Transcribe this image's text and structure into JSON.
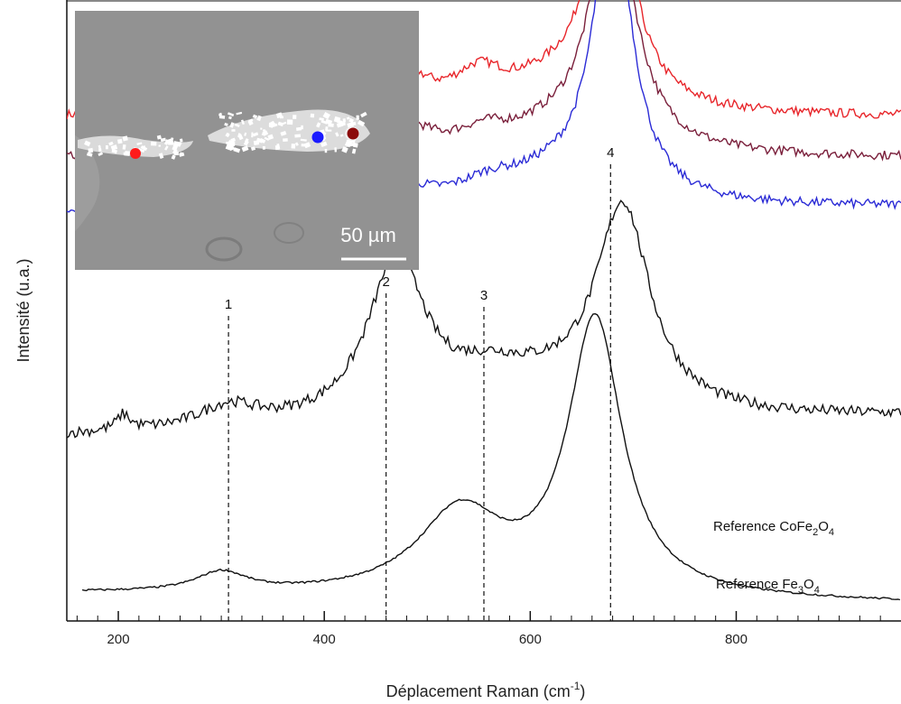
{
  "chart_data": {
    "type": "line",
    "xlabel": "Déplacement Raman (cm-1)",
    "xlabel_parts": {
      "main": "Déplacement Raman (cm",
      "sup": "-1",
      "end": ")"
    },
    "ylabel": "Intensité (u.a.)",
    "xlim": [
      150,
      960
    ],
    "ylim": [
      0,
      100
    ],
    "x_ticks": [
      200,
      400,
      600,
      800
    ],
    "grid": false,
    "peak_markers": [
      {
        "label": "1",
        "x": 307
      },
      {
        "label": "2",
        "x": 460
      },
      {
        "label": "3",
        "x": 555
      },
      {
        "label": "4",
        "x": 678
      }
    ],
    "series": [
      {
        "color": "#e8262b",
        "base": 82.3,
        "slope": 0.0,
        "bands": [
          [
            307,
            4.0,
            38
          ],
          [
            465,
            9.0,
            30
          ],
          [
            550,
            5.0,
            30
          ],
          [
            678,
            40.0,
            24
          ],
          [
            620,
            4.0,
            60
          ]
        ]
      },
      {
        "color": "#7a1f3b",
        "base": 75.6,
        "slope": 0.0,
        "bands": [
          [
            307,
            5.5,
            40
          ],
          [
            465,
            6.5,
            32
          ],
          [
            555,
            2.5,
            30
          ],
          [
            680,
            40.0,
            26
          ],
          [
            620,
            3.0,
            60
          ]
        ]
      },
      {
        "color": "#2b2bd6",
        "base": 66.8,
        "slope": 0.001,
        "bands": [
          [
            312,
            5.0,
            42
          ],
          [
            462,
            4.5,
            32
          ],
          [
            560,
            2.5,
            35
          ],
          [
            680,
            49.0,
            22
          ],
          [
            620,
            4.0,
            60
          ]
        ]
      },
      {
        "name": "Reference CoFe2O4",
        "label_main": "Reference CoFe",
        "sub1": "2",
        "mid": "O",
        "sub2": "4",
        "color": "#111111",
        "base": 30.0,
        "slope": 0.004,
        "bands": [
          [
            205,
            2.5,
            8
          ],
          [
            307,
            3.5,
            35
          ],
          [
            470,
            26.0,
            34
          ],
          [
            560,
            5.0,
            50
          ],
          [
            690,
            33.0,
            32
          ],
          [
            620,
            4.0,
            80
          ]
        ]
      },
      {
        "name": "Reference Fe3O4",
        "label_main": "Reference Fe",
        "sub1": "3",
        "mid": "O",
        "sub2": "4",
        "color": "#111111",
        "base": 4.5,
        "slope": -0.002,
        "bands": [
          [
            300,
            3.2,
            30
          ],
          [
            532,
            13.5,
            50
          ],
          [
            663,
            45.0,
            32
          ]
        ]
      }
    ],
    "inset": {
      "type": "micrograph",
      "scale_bar_label": "50 µm",
      "markers": [
        {
          "color": "#ff1a1a"
        },
        {
          "color": "#1a1aff"
        },
        {
          "color": "#8b0a0a"
        }
      ]
    }
  }
}
